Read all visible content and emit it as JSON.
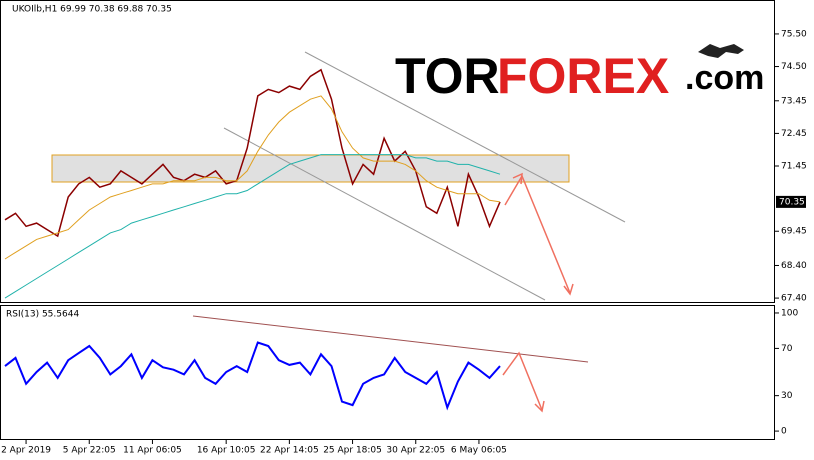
{
  "chart_data": [
    {
      "type": "line",
      "title": "UKOIlb,H1 69.99 70.38 69.88 70.35",
      "categories": [
        null,
        null,
        "2 Apr 2019",
        null,
        null,
        null,
        null,
        null,
        "5 Apr 22:05",
        null,
        null,
        null,
        null,
        null,
        "11 Apr 06:05",
        null,
        null,
        null,
        null,
        null,
        null,
        "16 Apr 10:05",
        null,
        null,
        null,
        null,
        null,
        "22 Apr 14:05",
        null,
        null,
        null,
        null,
        null,
        "25 Apr 18:05",
        null,
        null,
        null,
        null,
        null,
        "30 Apr 22:05",
        null,
        null,
        null,
        null,
        null,
        "6 May 06:05",
        null,
        null
      ],
      "series": [
        {
          "color": "#8b0000",
          "values": [
            69.8,
            70.0,
            69.6,
            69.7,
            69.5,
            69.3,
            70.5,
            70.9,
            71.1,
            70.8,
            70.9,
            71.3,
            71.1,
            70.9,
            71.2,
            71.5,
            71.1,
            71.0,
            71.2,
            71.1,
            71.3,
            70.9,
            71.0,
            72.0,
            73.6,
            73.8,
            73.7,
            73.9,
            73.8,
            74.2,
            74.4,
            73.5,
            72.0,
            70.9,
            71.5,
            71.2,
            72.3,
            71.6,
            71.9,
            71.3,
            70.2,
            70.0,
            70.8,
            69.6,
            71.2,
            70.5,
            69.6,
            70.35
          ]
        },
        {
          "color": "#e0a020",
          "values": [
            68.6,
            68.8,
            69.0,
            69.2,
            69.3,
            69.4,
            69.5,
            69.8,
            70.1,
            70.3,
            70.5,
            70.6,
            70.7,
            70.8,
            70.9,
            70.9,
            71.0,
            71.0,
            71.0,
            71.1,
            71.1,
            71.0,
            71.0,
            71.3,
            71.9,
            72.4,
            72.8,
            73.1,
            73.3,
            73.5,
            73.6,
            73.2,
            72.5,
            72.0,
            71.7,
            71.6,
            71.6,
            71.6,
            71.5,
            71.3,
            71.0,
            70.8,
            70.7,
            70.6,
            70.6,
            70.6,
            70.4,
            70.35
          ]
        },
        {
          "color": "#20b2aa",
          "values": [
            67.4,
            67.6,
            67.8,
            68.0,
            68.2,
            68.4,
            68.6,
            68.8,
            69.0,
            69.2,
            69.4,
            69.5,
            69.7,
            69.8,
            69.9,
            70.0,
            70.1,
            70.2,
            70.3,
            70.4,
            70.5,
            70.6,
            70.6,
            70.7,
            70.9,
            71.1,
            71.3,
            71.5,
            71.6,
            71.7,
            71.8,
            71.8,
            71.8,
            71.8,
            71.8,
            71.8,
            71.8,
            71.8,
            71.8,
            71.7,
            71.7,
            71.6,
            71.6,
            71.5,
            71.5,
            71.4,
            71.3,
            71.2
          ]
        }
      ],
      "ylim": [
        67.28,
        76.51
      ],
      "yticks": [
        {
          "value": 75.5,
          "label": "75.50"
        },
        {
          "value": 74.5,
          "label": "74.50"
        },
        73.45,
        72.45,
        71.45,
        69.45,
        {
          "value": 68.4,
          "label": "68.40"
        },
        {
          "value": 67.4,
          "label": "67.40"
        }
      ],
      "current_price": 70.35
    },
    {
      "type": "line",
      "title": "RSI(13) 55.5644",
      "series": [
        {
          "color": "#0000ff",
          "values": [
            55,
            62,
            40,
            50,
            58,
            45,
            60,
            66,
            72,
            62,
            48,
            55,
            65,
            45,
            60,
            54,
            52,
            48,
            60,
            45,
            40,
            50,
            55,
            50,
            75,
            72,
            60,
            56,
            58,
            48,
            65,
            55,
            25,
            22,
            40,
            45,
            48,
            62,
            50,
            45,
            40,
            50,
            20,
            42,
            58,
            52,
            45,
            55
          ]
        }
      ],
      "ylim": [
        -6.7,
        105.9
      ],
      "yticks": [
        100,
        70,
        30,
        0
      ]
    }
  ],
  "watermark": {
    "part1": "TOR",
    "part2": "FOREX",
    "part3": ".com"
  }
}
